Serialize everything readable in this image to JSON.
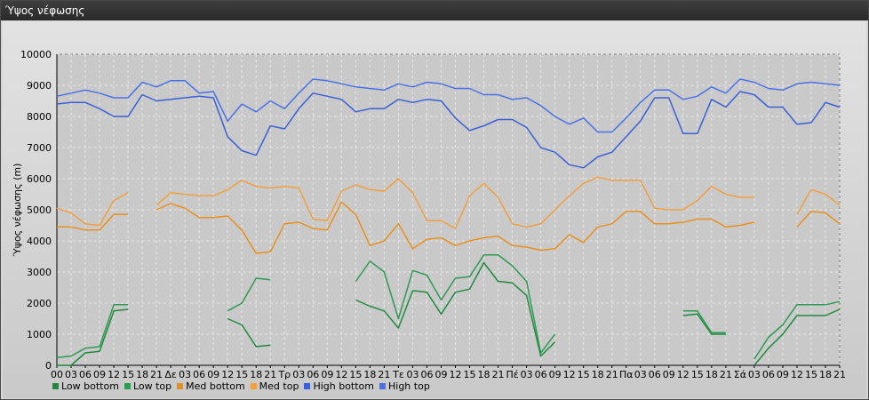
{
  "window": {
    "title": "Ύψος νέφωσης"
  },
  "chart_data": {
    "type": "line",
    "ylabel": "Ύψος νέφωσης (m)",
    "ylim": [
      0,
      10000
    ],
    "yticks": [
      0,
      1000,
      2000,
      3000,
      4000,
      5000,
      6000,
      7000,
      8000,
      9000,
      10000
    ],
    "grid": true,
    "legend_position": "bottom-left",
    "categories": [
      "00",
      "03",
      "06",
      "09",
      "12",
      "15",
      "18",
      "21",
      "Δε",
      "03",
      "06",
      "09",
      "12",
      "15",
      "18",
      "21",
      "Τρ",
      "03",
      "06",
      "09",
      "12",
      "15",
      "18",
      "21",
      "Τε",
      "03",
      "06",
      "09",
      "12",
      "15",
      "18",
      "21",
      "Πέ",
      "03",
      "06",
      "09",
      "12",
      "15",
      "18",
      "21",
      "Πα",
      "03",
      "06",
      "09",
      "12",
      "15",
      "18",
      "21",
      "Σά",
      "03",
      "06",
      "09",
      "12",
      "15",
      "18",
      "21"
    ],
    "series": [
      {
        "name": "Low bottom",
        "color": "#1f8a3e",
        "values": [
          0,
          0,
          400,
          450,
          1750,
          1800,
          null,
          null,
          null,
          null,
          null,
          null,
          1500,
          1300,
          600,
          650,
          null,
          null,
          null,
          null,
          null,
          2100,
          1900,
          1750,
          1200,
          2400,
          2350,
          1650,
          2350,
          2450,
          3300,
          2700,
          2650,
          2250,
          300,
          750,
          null,
          null,
          null,
          null,
          null,
          null,
          null,
          null,
          1600,
          1650,
          1000,
          1000,
          null,
          0,
          550,
          1000,
          1600,
          1600,
          1600,
          1800
        ]
      },
      {
        "name": "Low top",
        "color": "#2e9a55",
        "values": [
          250,
          300,
          550,
          600,
          1950,
          1950,
          null,
          null,
          null,
          null,
          null,
          null,
          1750,
          2000,
          2800,
          2750,
          null,
          null,
          null,
          null,
          null,
          2700,
          3350,
          3000,
          1500,
          3050,
          2900,
          2100,
          2800,
          2850,
          3550,
          3550,
          3200,
          2700,
          400,
          1000,
          null,
          null,
          null,
          null,
          null,
          null,
          null,
          null,
          1750,
          1750,
          1050,
          1050,
          null,
          200,
          900,
          1300,
          1950,
          1950,
          1950,
          2050
        ]
      },
      {
        "name": "Med bottom",
        "color": "#e8901e",
        "values": [
          4450,
          4450,
          4350,
          4350,
          4850,
          4850,
          null,
          5000,
          5200,
          5050,
          4750,
          4750,
          4800,
          4350,
          3600,
          3650,
          4550,
          4600,
          4400,
          4350,
          5250,
          4850,
          3850,
          4000,
          4550,
          3750,
          4050,
          4100,
          3850,
          4000,
          4100,
          4150,
          3850,
          3800,
          3700,
          3750,
          4200,
          3950,
          4450,
          4550,
          4950,
          4950,
          4550,
          4550,
          4600,
          4700,
          4700,
          4450,
          4500,
          4600,
          null,
          null,
          4450,
          4950,
          4900,
          4550
        ]
      },
      {
        "name": "Med top",
        "color": "#f0a040",
        "values": [
          5050,
          4900,
          4550,
          4500,
          5300,
          5550,
          null,
          5150,
          5550,
          5500,
          5450,
          5450,
          5650,
          5950,
          5750,
          5700,
          5750,
          5700,
          4700,
          4650,
          5600,
          5800,
          5650,
          5600,
          6000,
          5550,
          4650,
          4650,
          4400,
          5450,
          5850,
          5400,
          4550,
          4450,
          4550,
          5000,
          5450,
          5850,
          6050,
          5950,
          5950,
          5950,
          5050,
          5000,
          5000,
          5300,
          5750,
          5500,
          5400,
          5400,
          null,
          null,
          4850,
          5650,
          5500,
          5150
        ]
      },
      {
        "name": "High bottom",
        "color": "#3a5fd8",
        "values": [
          8400,
          8450,
          8450,
          8250,
          8000,
          8000,
          8700,
          8500,
          8550,
          8600,
          8650,
          8600,
          7350,
          6900,
          6750,
          7700,
          7600,
          8250,
          8750,
          8650,
          8550,
          8150,
          8250,
          8250,
          8550,
          8450,
          8550,
          8500,
          7950,
          7550,
          7700,
          7900,
          7900,
          7650,
          7000,
          6850,
          6450,
          6350,
          6700,
          6850,
          7350,
          7850,
          8600,
          8600,
          7450,
          7450,
          8550,
          8300,
          8800,
          8700,
          8300,
          8300,
          7750,
          7800,
          8450,
          8300
        ]
      },
      {
        "name": "High top",
        "color": "#4a70e8",
        "values": [
          8650,
          8750,
          8850,
          8750,
          8600,
          8600,
          9100,
          8950,
          9150,
          9150,
          8750,
          8800,
          7850,
          8400,
          8150,
          8500,
          8250,
          8750,
          9200,
          9150,
          9050,
          8950,
          8900,
          8850,
          9050,
          8950,
          9100,
          9050,
          8900,
          8900,
          8700,
          8700,
          8550,
          8600,
          8350,
          8000,
          7750,
          7950,
          7500,
          7500,
          7950,
          8450,
          8850,
          8850,
          8550,
          8650,
          8950,
          8750,
          9200,
          9100,
          8900,
          8850,
          9050,
          9100,
          9050,
          9000
        ]
      }
    ]
  }
}
